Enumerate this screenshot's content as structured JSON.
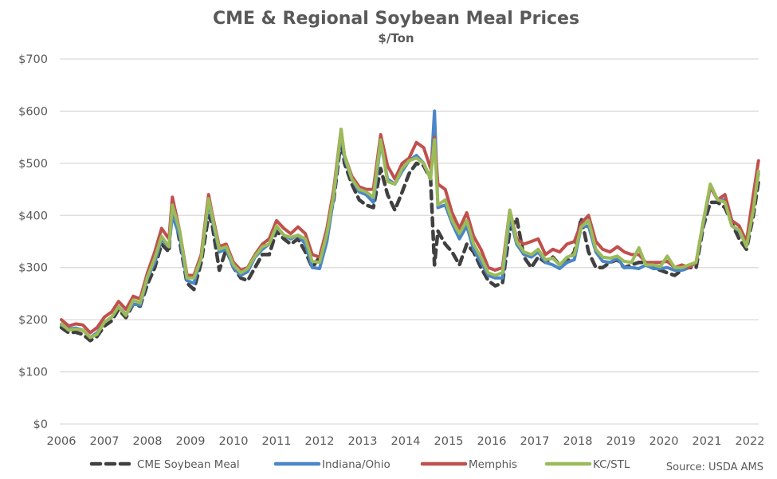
{
  "chart_data": {
    "type": "line",
    "title": "CME & Regional Soybean Meal Prices",
    "subtitle": "$/Ton",
    "xlabel": "",
    "ylabel": "",
    "ylim": [
      0,
      700
    ],
    "xlim": [
      2006,
      2022.2
    ],
    "y_ticks": [
      0,
      100,
      200,
      300,
      400,
      500,
      600,
      700
    ],
    "y_tick_labels": [
      "$0",
      "$100",
      "$200",
      "$300",
      "$400",
      "$500",
      "$600",
      "$700"
    ],
    "x_ticks": [
      2006,
      2007,
      2008,
      2009,
      2010,
      2011,
      2012,
      2013,
      2014,
      2015,
      2016,
      2017,
      2018,
      2019,
      2020,
      2021,
      2022
    ],
    "x_tick_labels": [
      "2006",
      "2007",
      "2008",
      "2009",
      "2010",
      "2011",
      "2012",
      "2013",
      "2014",
      "2015",
      "2016",
      "2017",
      "2018",
      "2019",
      "2020",
      "2021",
      "2022"
    ],
    "grid": true,
    "legend_position": "bottom",
    "source": "Source: USDA AMS",
    "x": [
      2006.0,
      2006.17,
      2006.33,
      2006.5,
      2006.67,
      2006.83,
      2007.0,
      2007.17,
      2007.33,
      2007.5,
      2007.67,
      2007.83,
      2008.0,
      2008.17,
      2008.33,
      2008.5,
      2008.58,
      2008.75,
      2008.92,
      2009.08,
      2009.25,
      2009.42,
      2009.5,
      2009.67,
      2009.83,
      2010.0,
      2010.17,
      2010.33,
      2010.5,
      2010.67,
      2010.83,
      2011.0,
      2011.17,
      2011.33,
      2011.5,
      2011.67,
      2011.83,
      2012.0,
      2012.17,
      2012.33,
      2012.5,
      2012.58,
      2012.75,
      2012.92,
      2013.08,
      2013.25,
      2013.42,
      2013.58,
      2013.75,
      2013.92,
      2014.08,
      2014.25,
      2014.42,
      2014.58,
      2014.67,
      2014.75,
      2014.92,
      2015.08,
      2015.25,
      2015.42,
      2015.58,
      2015.75,
      2015.92,
      2016.08,
      2016.25,
      2016.42,
      2016.58,
      2016.75,
      2016.92,
      2017.08,
      2017.25,
      2017.42,
      2017.58,
      2017.75,
      2017.92,
      2018.08,
      2018.25,
      2018.42,
      2018.58,
      2018.75,
      2018.92,
      2019.08,
      2019.25,
      2019.42,
      2019.58,
      2019.75,
      2019.92,
      2020.08,
      2020.25,
      2020.42,
      2020.58,
      2020.75,
      2020.92,
      2021.08,
      2021.25,
      2021.42,
      2021.58,
      2021.75,
      2021.92,
      2022.08,
      2022.2
    ],
    "series": [
      {
        "name": "CME Soybean Meal",
        "color": "#404040",
        "style": "dashed",
        "values": [
          185,
          175,
          176,
          172,
          160,
          168,
          188,
          198,
          220,
          204,
          230,
          226,
          268,
          300,
          345,
          330,
          430,
          350,
          270,
          258,
          310,
          400,
          385,
          295,
          335,
          300,
          280,
          275,
          300,
          325,
          325,
          370,
          355,
          345,
          355,
          330,
          300,
          320,
          370,
          430,
          545,
          500,
          460,
          430,
          420,
          415,
          490,
          440,
          410,
          445,
          480,
          500,
          495,
          470,
          305,
          370,
          345,
          330,
          305,
          345,
          330,
          300,
          275,
          265,
          270,
          370,
          395,
          320,
          300,
          320,
          310,
          320,
          305,
          310,
          330,
          395,
          330,
          300,
          300,
          310,
          315,
          300,
          305,
          310,
          310,
          300,
          295,
          290,
          285,
          295,
          300,
          300,
          380,
          425,
          425,
          415,
          385,
          355,
          335,
          400,
          465
        ]
      },
      {
        "name": "Indiana/Ohio",
        "color": "#4a86c8",
        "style": "solid",
        "values": [
          190,
          182,
          184,
          180,
          166,
          175,
          195,
          205,
          225,
          210,
          230,
          228,
          280,
          310,
          355,
          340,
          400,
          360,
          275,
          270,
          320,
          425,
          395,
          330,
          335,
          300,
          285,
          292,
          320,
          335,
          345,
          378,
          362,
          355,
          362,
          345,
          300,
          298,
          350,
          435,
          560,
          510,
          470,
          445,
          440,
          425,
          540,
          470,
          460,
          485,
          505,
          515,
          500,
          470,
          600,
          415,
          420,
          385,
          355,
          380,
          335,
          310,
          285,
          280,
          280,
          400,
          345,
          325,
          320,
          330,
          310,
          305,
          298,
          310,
          315,
          378,
          380,
          330,
          312,
          310,
          318,
          300,
          300,
          298,
          305,
          298,
          298,
          300,
          295,
          295,
          300,
          310,
          385,
          455,
          430,
          430,
          380,
          370,
          345,
          420,
          480
        ]
      },
      {
        "name": "Memphis",
        "color": "#c0504d",
        "style": "solid",
        "values": [
          200,
          188,
          192,
          190,
          175,
          185,
          205,
          215,
          235,
          220,
          245,
          240,
          290,
          330,
          375,
          355,
          435,
          370,
          285,
          285,
          325,
          440,
          405,
          340,
          345,
          310,
          295,
          300,
          325,
          345,
          355,
          390,
          375,
          365,
          378,
          365,
          325,
          320,
          375,
          450,
          565,
          515,
          475,
          455,
          450,
          450,
          555,
          495,
          470,
          500,
          510,
          540,
          530,
          490,
          550,
          460,
          450,
          405,
          375,
          405,
          360,
          335,
          300,
          295,
          300,
          410,
          355,
          345,
          350,
          355,
          325,
          335,
          330,
          345,
          350,
          385,
          400,
          350,
          335,
          330,
          340,
          330,
          325,
          325,
          310,
          310,
          310,
          312,
          300,
          305,
          300,
          310,
          390,
          455,
          430,
          440,
          390,
          380,
          350,
          440,
          505
        ]
      },
      {
        "name": "KC/STL",
        "color": "#9bbb59",
        "style": "solid",
        "values": [
          192,
          180,
          182,
          180,
          166,
          172,
          195,
          205,
          225,
          208,
          238,
          232,
          282,
          318,
          360,
          340,
          420,
          370,
          280,
          280,
          318,
          432,
          400,
          335,
          340,
          305,
          290,
          298,
          322,
          340,
          345,
          380,
          362,
          358,
          362,
          355,
          312,
          310,
          365,
          440,
          565,
          515,
          470,
          450,
          445,
          435,
          545,
          465,
          460,
          490,
          505,
          510,
          500,
          470,
          545,
          420,
          430,
          390,
          365,
          390,
          345,
          320,
          290,
          285,
          290,
          410,
          350,
          330,
          325,
          335,
          315,
          318,
          305,
          320,
          325,
          378,
          390,
          335,
          320,
          318,
          322,
          312,
          310,
          338,
          305,
          305,
          302,
          322,
          300,
          300,
          305,
          310,
          390,
          460,
          430,
          425,
          380,
          372,
          340,
          410,
          485
        ]
      }
    ]
  }
}
